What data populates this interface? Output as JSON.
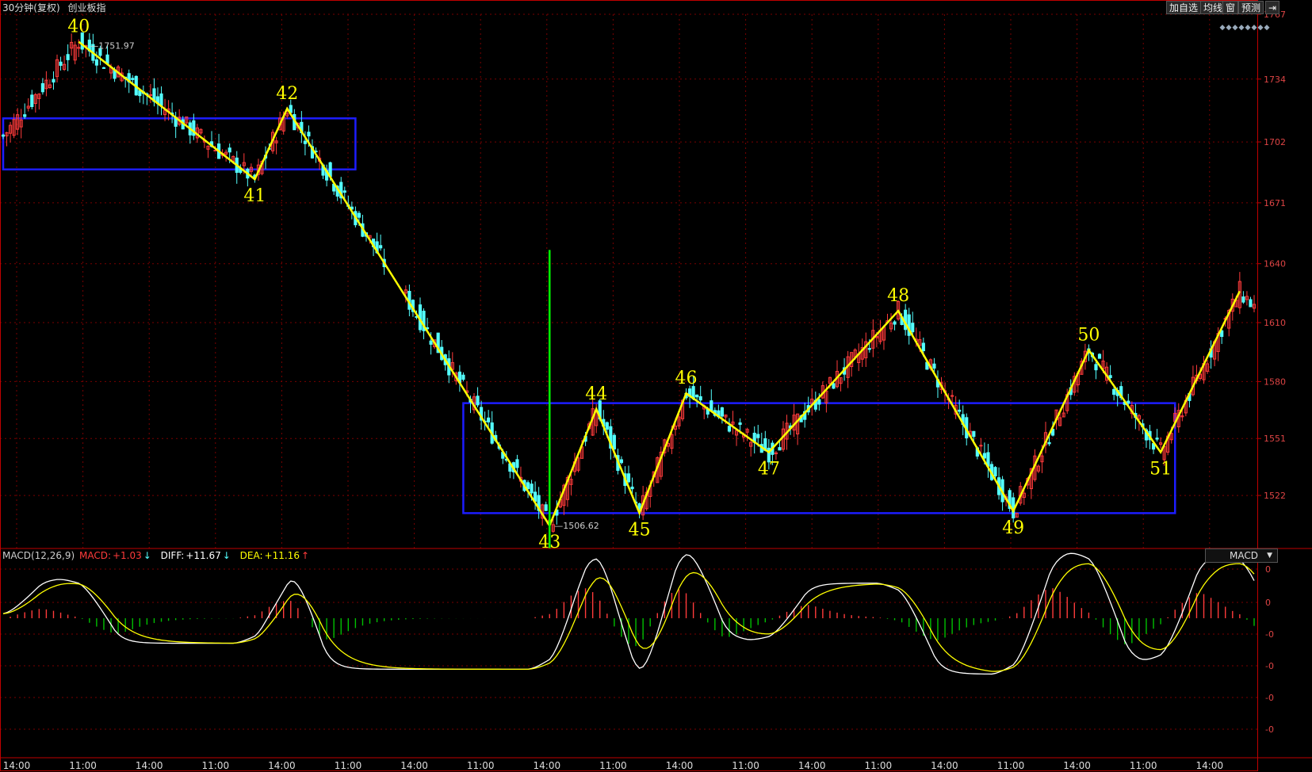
{
  "header": {
    "period": "30分钟(复权)",
    "symbol": "创业板指"
  },
  "toolbar": {
    "add": "加自选",
    "ma": "均线",
    "win": "窗",
    "predict": "预测",
    "arrow": "⇥"
  },
  "macd": {
    "title": "MACD(12,26,9)",
    "macd_label": "MACD:",
    "macd_value": "+1.03",
    "macd_arrow": "↓",
    "diff_label": "DIFF:",
    "diff_value": "+11.67",
    "diff_arrow": "↓",
    "dea_label": "DEA:",
    "dea_value": "+11.16",
    "dea_arrow": "↑",
    "selector": "MACD",
    "selector_arrow": "▼",
    "axis_labels": [
      "0",
      "0",
      "-0",
      "-0",
      "-0",
      "-0"
    ]
  },
  "colors": {
    "up": "#ff3b3b",
    "down": "#54ffff",
    "zigzag": "#ffff00",
    "box": "#1d1dff",
    "marker": "#00ff00",
    "diff": "#ffffff",
    "dea": "#ffff00",
    "grid": "#7a0000",
    "axis": "#c00000"
  },
  "chart_data": {
    "type": "candlestick",
    "ylim": [
      1495,
      1767
    ],
    "y_ticks": [
      1767,
      1734,
      1702,
      1671,
      1640,
      1610,
      1580,
      1551,
      1522
    ],
    "x_ticks": [
      "14:00",
      "11:00",
      "14:00",
      "11:00",
      "14:00",
      "11:00",
      "14:00",
      "11:00",
      "14:00",
      "11:00",
      "14:00",
      "11:00",
      "14:00",
      "11:00",
      "14:00",
      "11:00",
      "14:00",
      "11:00",
      "14:00"
    ],
    "high_label": "1751.97",
    "low_label": "1506.62",
    "zigzag": [
      {
        "label": "40",
        "i": 21,
        "price": 1753
      },
      {
        "label": "41",
        "i": 70,
        "price": 1683
      },
      {
        "label": "42",
        "i": 79,
        "price": 1719
      },
      {
        "label": "43",
        "i": 152,
        "price": 1506.62
      },
      {
        "label": "44",
        "i": 165,
        "price": 1566
      },
      {
        "label": "45",
        "i": 177,
        "price": 1513
      },
      {
        "label": "46",
        "i": 190,
        "price": 1574
      },
      {
        "label": "47",
        "i": 213,
        "price": 1544
      },
      {
        "label": "48",
        "i": 249,
        "price": 1616
      },
      {
        "label": "49",
        "i": 281,
        "price": 1514
      },
      {
        "label": "50",
        "i": 302,
        "price": 1596
      },
      {
        "label": "51",
        "i": 322,
        "price": 1544
      },
      {
        "label": "",
        "i": 344,
        "price": 1626
      }
    ],
    "boxes": [
      {
        "i0": 0,
        "i1": 98,
        "p0": 1688,
        "p1": 1714
      },
      {
        "i0": 128,
        "i1": 326,
        "p0": 1513,
        "p1": 1569
      }
    ],
    "marker_i": 152
  }
}
